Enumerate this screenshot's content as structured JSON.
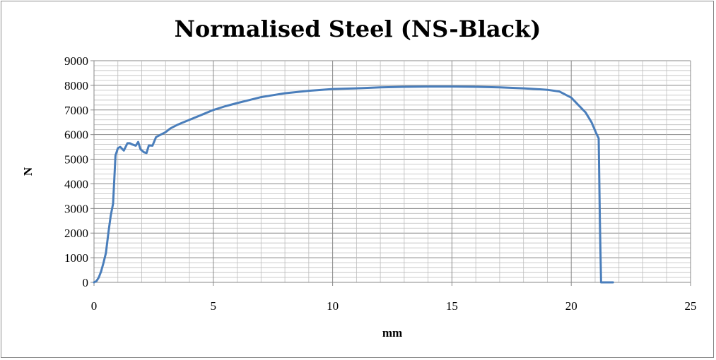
{
  "chart_data": {
    "type": "line",
    "title": "Normalised Steel (NS-Black)",
    "xlabel": "mm",
    "ylabel": "N",
    "xlim": [
      0,
      25
    ],
    "ylim": [
      0,
      9000
    ],
    "x_ticks": [
      "0",
      "5",
      "10",
      "15",
      "20",
      "25"
    ],
    "y_ticks": [
      "0",
      "1000",
      "2000",
      "3000",
      "4000",
      "5000",
      "6000",
      "7000",
      "8000",
      "9000"
    ],
    "grid": true,
    "legend": "none",
    "line_color": "#4a7ebb",
    "series": [
      {
        "points": [
          [
            0,
            0
          ],
          [
            0.1,
            50
          ],
          [
            0.2,
            200
          ],
          [
            0.3,
            450
          ],
          [
            0.4,
            800
          ],
          [
            0.5,
            1200
          ],
          [
            0.6,
            2000
          ],
          [
            0.7,
            2700
          ],
          [
            0.8,
            3200
          ],
          [
            0.9,
            5150
          ],
          [
            1.0,
            5450
          ],
          [
            1.1,
            5500
          ],
          [
            1.25,
            5350
          ],
          [
            1.4,
            5650
          ],
          [
            1.5,
            5650
          ],
          [
            1.6,
            5600
          ],
          [
            1.75,
            5550
          ],
          [
            1.85,
            5700
          ],
          [
            1.95,
            5400
          ],
          [
            2.1,
            5280
          ],
          [
            2.2,
            5250
          ],
          [
            2.3,
            5560
          ],
          [
            2.45,
            5550
          ],
          [
            2.6,
            5900
          ],
          [
            2.8,
            6000
          ],
          [
            3.0,
            6100
          ],
          [
            3.2,
            6250
          ],
          [
            3.5,
            6400
          ],
          [
            4.0,
            6600
          ],
          [
            4.5,
            6800
          ],
          [
            5.0,
            7000
          ],
          [
            5.5,
            7150
          ],
          [
            6.0,
            7280
          ],
          [
            6.5,
            7400
          ],
          [
            7.0,
            7520
          ],
          [
            7.5,
            7600
          ],
          [
            8.0,
            7680
          ],
          [
            9.0,
            7780
          ],
          [
            10.0,
            7850
          ],
          [
            11.0,
            7880
          ],
          [
            12.0,
            7920
          ],
          [
            13.0,
            7940
          ],
          [
            14.0,
            7950
          ],
          [
            15.0,
            7950
          ],
          [
            16.0,
            7940
          ],
          [
            17.0,
            7920
          ],
          [
            18.0,
            7880
          ],
          [
            19.0,
            7820
          ],
          [
            19.5,
            7750
          ],
          [
            20.0,
            7500
          ],
          [
            20.3,
            7200
          ],
          [
            20.6,
            6900
          ],
          [
            20.85,
            6500
          ],
          [
            21.05,
            6050
          ],
          [
            21.15,
            5850
          ],
          [
            21.2,
            2500
          ],
          [
            21.25,
            0
          ],
          [
            21.5,
            0
          ],
          [
            21.75,
            0
          ]
        ]
      }
    ]
  }
}
